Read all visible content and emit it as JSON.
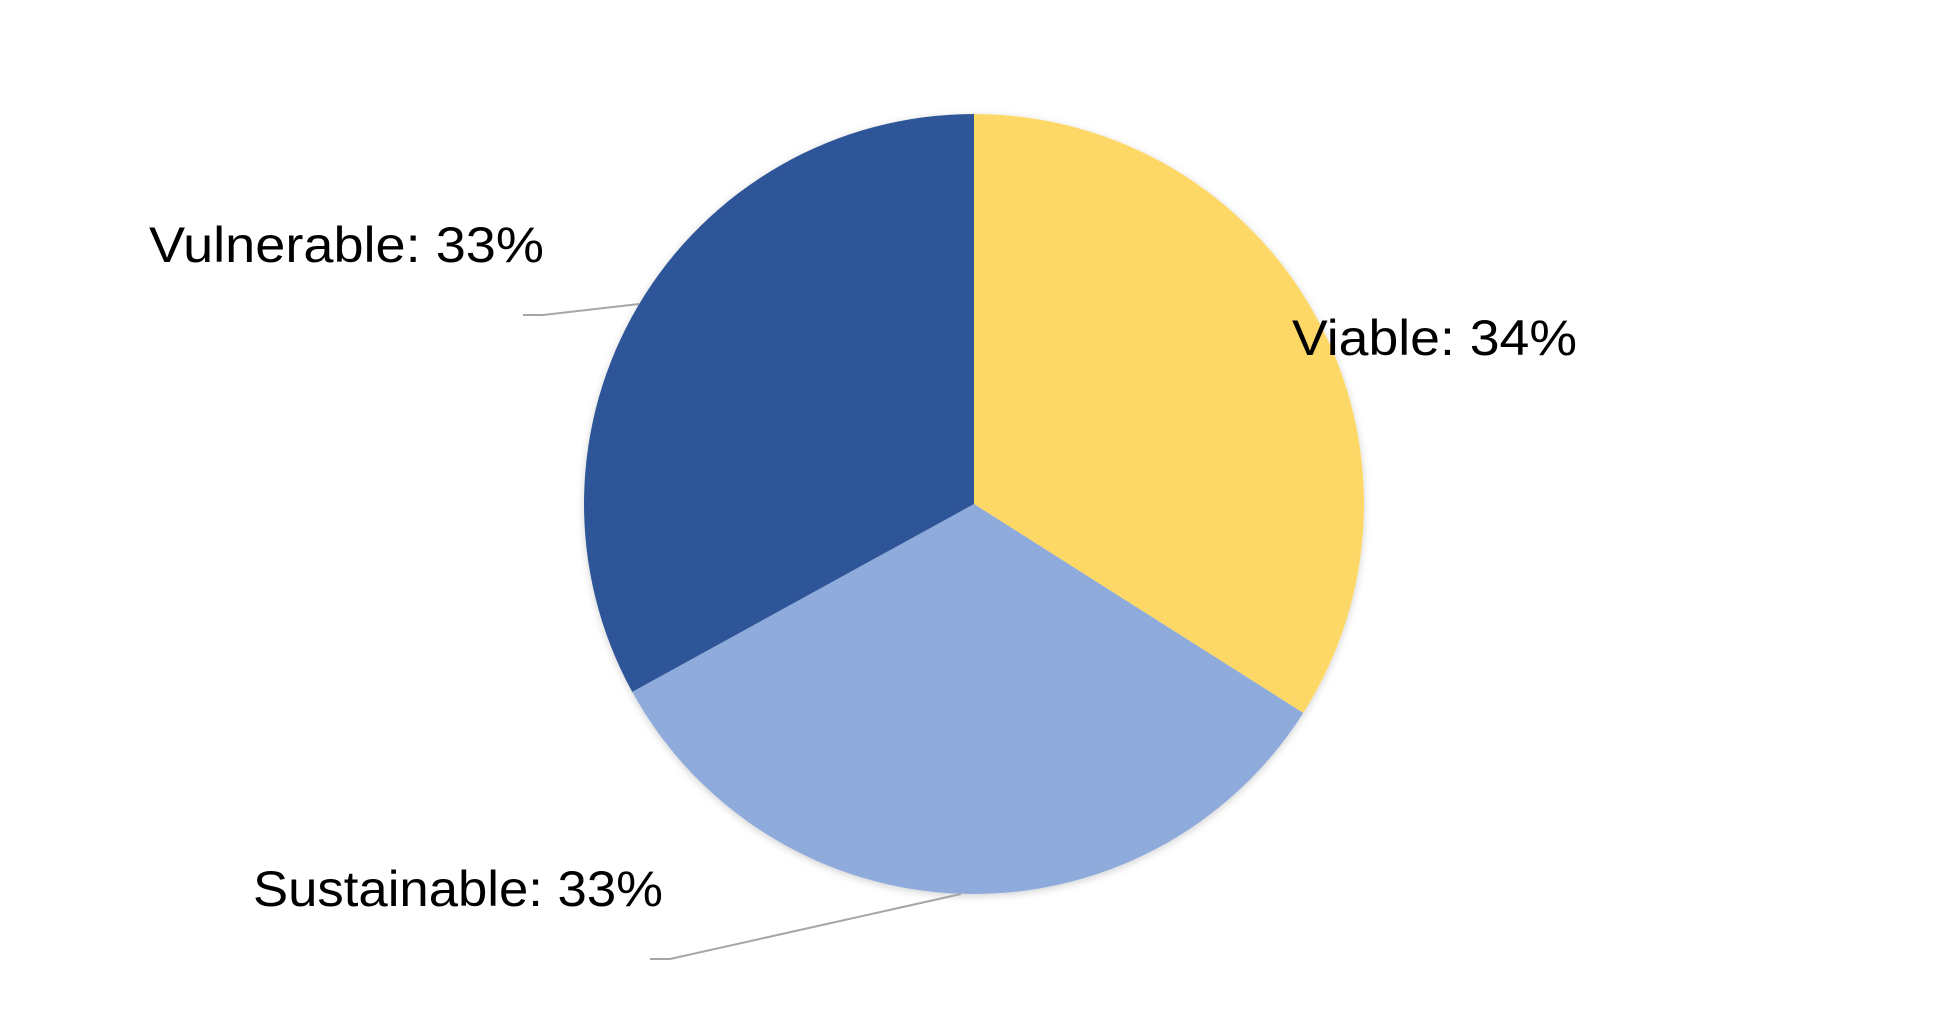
{
  "chart_data": {
    "type": "pie",
    "categories": [
      "Viable",
      "Sustainable",
      "Vulnerable"
    ],
    "values": [
      34,
      33,
      33
    ],
    "unit": "%",
    "labels": [
      "Viable: 34%",
      "Sustainable: 33%",
      "Vulnerable: 33%"
    ],
    "colors": [
      "#FDD866",
      "#8FABDC",
      "#2F5597"
    ],
    "leader_line_color": "#A6A6A6",
    "start": "top, clockwise"
  }
}
